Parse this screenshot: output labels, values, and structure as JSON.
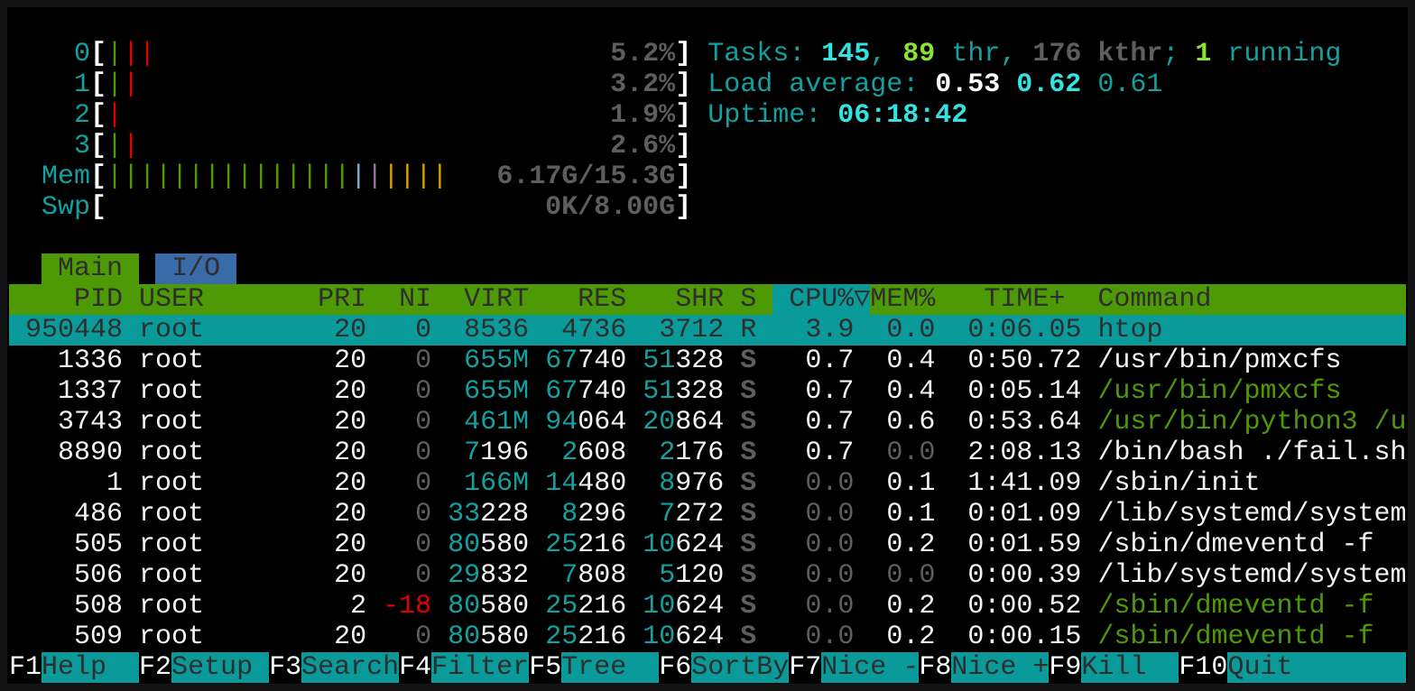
{
  "colors": {
    "accent_cyan": "#0a9a9a",
    "header_green": "#4e9a06",
    "tab_io_blue": "#3a6aa8",
    "bar_green": "#4e9a06",
    "bar_red": "#e00000",
    "bar_blue": "#7fa9d6",
    "bar_magenta": "#a070a8",
    "bar_yellow": "#d8a000"
  },
  "meters": [
    {
      "label": "0",
      "bars": [
        "g",
        "r",
        "r"
      ],
      "value": "5.2%"
    },
    {
      "label": "1",
      "bars": [
        "g",
        "r"
      ],
      "value": "3.2%"
    },
    {
      "label": "2",
      "bars": [
        "r"
      ],
      "value": "1.9%"
    },
    {
      "label": "3",
      "bars": [
        "g",
        "r"
      ],
      "value": "2.6%"
    },
    {
      "label": "Mem",
      "bars": [
        "g",
        "g",
        "g",
        "g",
        "g",
        "g",
        "g",
        "g",
        "g",
        "g",
        "g",
        "g",
        "g",
        "g",
        "g",
        "bl",
        "m",
        "y",
        "y",
        "y",
        "y"
      ],
      "value": "6.17G/15.3G"
    },
    {
      "label": "Swp",
      "bars": [],
      "value": "0K/8.00G"
    }
  ],
  "summary": {
    "tasks_label": "Tasks: ",
    "tasks": "145",
    "sep1": ", ",
    "threads": "89",
    "thr_label": " thr, ",
    "kthreads": "176 kthr",
    "sep2": "; ",
    "running": "1",
    "running_label": " running",
    "load_label": "Load average: ",
    "load1": "0.53",
    "load5": "0.62",
    "load15": "0.61",
    "uptime_label": "Uptime: ",
    "uptime": "06:18:42"
  },
  "tabs": [
    {
      "label": "Main",
      "active": true
    },
    {
      "label": "I/O",
      "active": false
    }
  ],
  "columns": {
    "pid": "PID",
    "user": "USER",
    "pri": "PRI",
    "ni": "NI",
    "virt": "VIRT",
    "res": "RES",
    "shr": "SHR",
    "s": "S",
    "cpu": "CPU%",
    "sort_indicator": "▽",
    "mem": "MEM%",
    "time": "TIME+",
    "command": "Command"
  },
  "sort_column": "CPU%",
  "processes": [
    {
      "pid": "950448",
      "user": "root",
      "pri": "20",
      "ni": "0",
      "virt": "8536",
      "res": "4736",
      "shr": "3712",
      "s": "R",
      "cpu": "3.9",
      "mem": "0.0",
      "time": "0:06.05",
      "command": "htop",
      "selected": true
    },
    {
      "pid": "1336",
      "user": "root",
      "pri": "20",
      "ni": "0",
      "virt": "655M",
      "res": "67740",
      "shr": "51328",
      "s": "S",
      "cpu": "0.7",
      "mem": "0.4",
      "time": "0:50.72",
      "command": "/usr/bin/pmxcfs"
    },
    {
      "pid": "1337",
      "user": "root",
      "pri": "20",
      "ni": "0",
      "virt": "655M",
      "res": "67740",
      "shr": "51328",
      "s": "S",
      "cpu": "0.7",
      "mem": "0.4",
      "time": "0:05.14",
      "command": "/usr/bin/pmxcfs",
      "thread": true
    },
    {
      "pid": "3743",
      "user": "root",
      "pri": "20",
      "ni": "0",
      "virt": "461M",
      "res": "94064",
      "shr": "20864",
      "s": "S",
      "cpu": "0.7",
      "mem": "0.6",
      "time": "0:53.64",
      "command": "/usr/bin/python3 /u",
      "thread": true
    },
    {
      "pid": "8890",
      "user": "root",
      "pri": "20",
      "ni": "0",
      "virt": "7196",
      "res": "2608",
      "shr": "2176",
      "s": "S",
      "cpu": "0.7",
      "mem": "0.0",
      "time": "2:08.13",
      "command": "/bin/bash ./fail.sh"
    },
    {
      "pid": "1",
      "user": "root",
      "pri": "20",
      "ni": "0",
      "virt": "166M",
      "res": "14480",
      "shr": "8976",
      "s": "S",
      "cpu": "0.0",
      "mem": "0.1",
      "time": "1:41.09",
      "command": "/sbin/init"
    },
    {
      "pid": "486",
      "user": "root",
      "pri": "20",
      "ni": "0",
      "virt": "33228",
      "res": "8296",
      "shr": "7272",
      "s": "S",
      "cpu": "0.0",
      "mem": "0.1",
      "time": "0:01.09",
      "command": "/lib/systemd/system"
    },
    {
      "pid": "505",
      "user": "root",
      "pri": "20",
      "ni": "0",
      "virt": "80580",
      "res": "25216",
      "shr": "10624",
      "s": "S",
      "cpu": "0.0",
      "mem": "0.2",
      "time": "0:01.59",
      "command": "/sbin/dmeventd -f"
    },
    {
      "pid": "506",
      "user": "root",
      "pri": "20",
      "ni": "0",
      "virt": "29832",
      "res": "7808",
      "shr": "5120",
      "s": "S",
      "cpu": "0.0",
      "mem": "0.0",
      "time": "0:00.39",
      "command": "/lib/systemd/system"
    },
    {
      "pid": "508",
      "user": "root",
      "pri": "2",
      "ni": "-18",
      "virt": "80580",
      "res": "25216",
      "shr": "10624",
      "s": "S",
      "cpu": "0.0",
      "mem": "0.2",
      "time": "0:00.52",
      "command": "/sbin/dmeventd -f",
      "thread": true
    },
    {
      "pid": "509",
      "user": "root",
      "pri": "20",
      "ni": "0",
      "virt": "80580",
      "res": "25216",
      "shr": "10624",
      "s": "S",
      "cpu": "0.0",
      "mem": "0.2",
      "time": "0:00.15",
      "command": "/sbin/dmeventd -f",
      "thread": true
    }
  ],
  "function_keys": [
    {
      "key": "F1",
      "label": "Help  "
    },
    {
      "key": "F2",
      "label": "Setup "
    },
    {
      "key": "F3",
      "label": "Search"
    },
    {
      "key": "F4",
      "label": "Filter"
    },
    {
      "key": "F5",
      "label": "Tree  "
    },
    {
      "key": "F6",
      "label": "SortBy"
    },
    {
      "key": "F7",
      "label": "Nice -"
    },
    {
      "key": "F8",
      "label": "Nice +"
    },
    {
      "key": "F9",
      "label": "Kill  "
    },
    {
      "key": "F10",
      "label": "Quit"
    }
  ]
}
